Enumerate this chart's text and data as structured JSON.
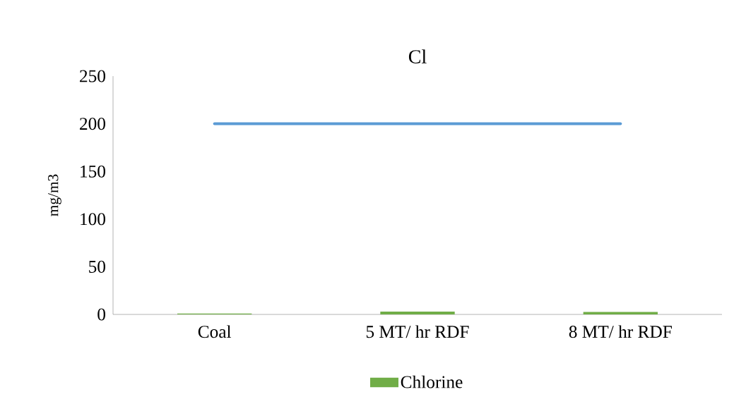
{
  "chart_data": {
    "type": "bar",
    "title": "Cl",
    "ylabel": "mg/m3",
    "categories": [
      "Coal",
      "5 MT/ hr RDF",
      "8 MT/ hr RDF"
    ],
    "series": [
      {
        "name": "Chlorine",
        "color": "#70ad47",
        "values": [
          1,
          3,
          2.5
        ]
      },
      {
        "type": "line",
        "color": "#5b9bd5",
        "values": [
          200,
          200,
          200
        ]
      }
    ],
    "ylim": [
      0,
      250
    ],
    "yticks": [
      0,
      50,
      100,
      150,
      200,
      250
    ],
    "legend": "bottom",
    "grid": false
  }
}
